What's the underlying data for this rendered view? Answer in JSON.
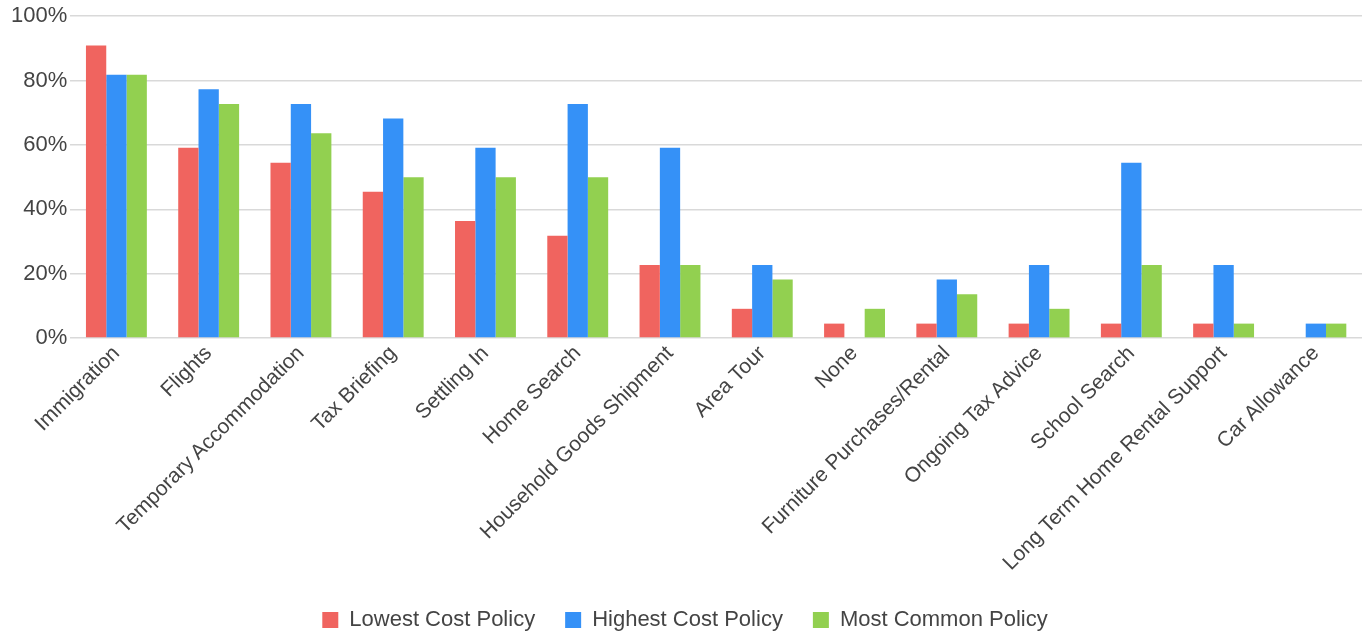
{
  "chart_data": {
    "type": "bar",
    "categories": [
      "Immigration",
      "Flights",
      "Temporary Accommodation",
      "Tax Briefing",
      "Settling In",
      "Home Search",
      "Household Goods Shipment",
      "Area Tour",
      "None",
      "Furniture Purchases/Rental",
      "Ongoing Tax Advice",
      "School Search",
      "Long Term Home Rental Support",
      "Car Allowance"
    ],
    "series": [
      {
        "name": "Lowest Cost Policy",
        "color": "#f0645f",
        "values": [
          90.9,
          59.1,
          54.5,
          45.5,
          36.4,
          31.8,
          22.7,
          9.1,
          4.5,
          4.5,
          4.5,
          4.5,
          4.5,
          0
        ]
      },
      {
        "name": "Highest Cost Policy",
        "color": "#3591f7",
        "values": [
          81.8,
          77.3,
          72.7,
          68.2,
          59.1,
          72.7,
          59.1,
          22.7,
          0,
          18.2,
          22.7,
          54.5,
          22.7,
          4.5
        ]
      },
      {
        "name": "Most Common Policy",
        "color": "#92d050",
        "values": [
          81.8,
          72.7,
          63.6,
          50,
          50,
          50,
          22.7,
          18.2,
          9.1,
          13.6,
          9.1,
          22.7,
          4.5,
          4.5
        ]
      }
    ],
    "ylim": [
      0,
      100
    ],
    "yticks": [
      {
        "value": 0,
        "label": "0%"
      },
      {
        "value": 20,
        "label": "20%"
      },
      {
        "value": 40,
        "label": "40%"
      },
      {
        "value": 60,
        "label": "60%"
      },
      {
        "value": 80,
        "label": "80%"
      },
      {
        "value": 100,
        "label": "100%"
      }
    ],
    "grid": "y",
    "legend": "bottom"
  }
}
